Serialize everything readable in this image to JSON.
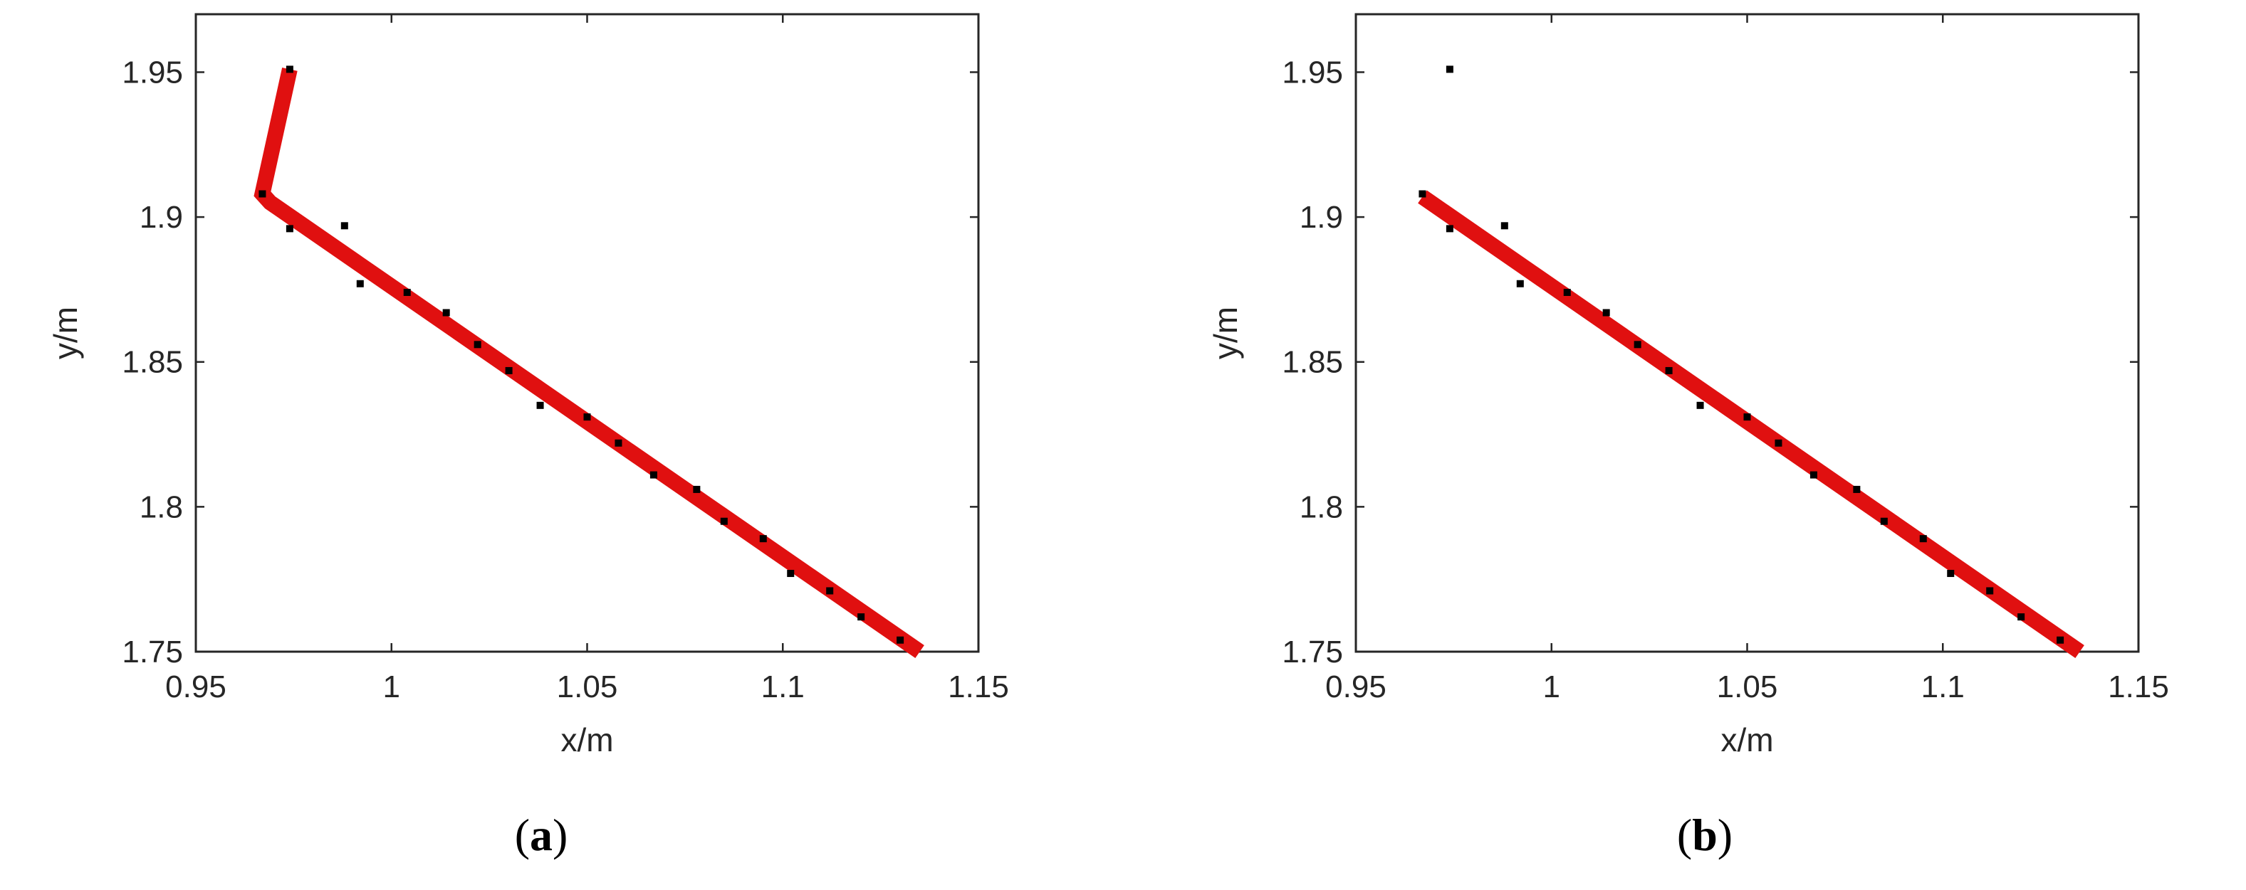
{
  "chart_data": [
    {
      "type": "line",
      "caption": {
        "open": "(",
        "letter": "a",
        "close": ")"
      },
      "xlabel": "x/m",
      "ylabel": "y/m",
      "xlim": [
        0.95,
        1.15
      ],
      "ylim": [
        1.75,
        1.97
      ],
      "xticks": [
        "0.95",
        "1",
        "1.05",
        "1.1",
        "1.15"
      ],
      "xtick_values": [
        0.95,
        1.0,
        1.05,
        1.1,
        1.15
      ],
      "yticks": [
        "1.75",
        "1.8",
        "1.85",
        "1.9",
        "1.95"
      ],
      "ytick_values": [
        1.75,
        1.8,
        1.85,
        1.9,
        1.95
      ],
      "grid": false,
      "series": [
        {
          "kind": "scatter",
          "color": "#000000",
          "x": [
            0.967,
            0.974,
            0.974,
            0.988,
            0.992,
            1.004,
            1.014,
            1.022,
            1.03,
            1.038,
            1.05,
            1.058,
            1.067,
            1.078,
            1.085,
            1.095,
            1.102,
            1.112,
            1.12,
            1.13
          ],
          "y": [
            1.908,
            1.951,
            1.896,
            1.897,
            1.877,
            1.874,
            1.867,
            1.856,
            1.847,
            1.835,
            1.831,
            1.822,
            1.811,
            1.806,
            1.795,
            1.789,
            1.777,
            1.771,
            1.762,
            1.754
          ]
        },
        {
          "kind": "line",
          "color": "#e01010",
          "x": [
            0.974,
            0.967,
            0.969,
            1.135
          ],
          "y": [
            1.951,
            1.908,
            1.905,
            1.75
          ]
        }
      ]
    },
    {
      "type": "line",
      "caption": {
        "open": "(",
        "letter": "b",
        "close": ")"
      },
      "xlabel": "x/m",
      "ylabel": "y/m",
      "xlim": [
        0.95,
        1.15
      ],
      "ylim": [
        1.75,
        1.97
      ],
      "xticks": [
        "0.95",
        "1",
        "1.05",
        "1.1",
        "1.15"
      ],
      "xtick_values": [
        0.95,
        1.0,
        1.05,
        1.1,
        1.15
      ],
      "yticks": [
        "1.75",
        "1.8",
        "1.85",
        "1.9",
        "1.95"
      ],
      "ytick_values": [
        1.75,
        1.8,
        1.85,
        1.9,
        1.95
      ],
      "grid": false,
      "series": [
        {
          "kind": "scatter",
          "color": "#000000",
          "x": [
            0.967,
            0.974,
            0.974,
            0.988,
            0.992,
            1.004,
            1.014,
            1.022,
            1.03,
            1.038,
            1.05,
            1.058,
            1.067,
            1.078,
            1.085,
            1.095,
            1.102,
            1.112,
            1.12,
            1.13
          ],
          "y": [
            1.908,
            1.951,
            1.896,
            1.897,
            1.877,
            1.874,
            1.867,
            1.856,
            1.847,
            1.835,
            1.831,
            1.822,
            1.811,
            1.806,
            1.795,
            1.789,
            1.777,
            1.771,
            1.762,
            1.754
          ]
        },
        {
          "kind": "line",
          "color": "#e01010",
          "x": [
            0.967,
            1.135
          ],
          "y": [
            1.907,
            1.75
          ]
        }
      ]
    }
  ]
}
